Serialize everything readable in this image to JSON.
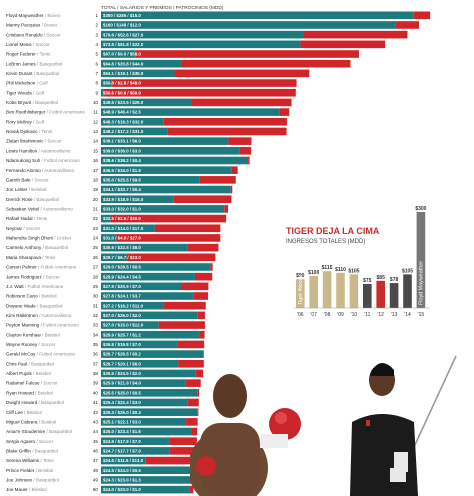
{
  "chart_data": [
    {
      "type": "bar",
      "orientation": "horizontal",
      "stacked": true,
      "title": "TOTAL / SALARIOS Y PREMIOS / PATROCINIOS (MDD)",
      "series": [
        {
          "name": "Salarios y premios",
          "color": "#1e7a7e"
        },
        {
          "name": "Patrocinios",
          "color": "#d2252a"
        }
      ],
      "rows": [
        {
          "rank": "1",
          "name": "Floyd Mayweather",
          "sport": "Boxeo",
          "label": "$300 / $285 / $15.0",
          "total": 300,
          "salary": 285,
          "sponsor": 15.0
        },
        {
          "rank": "2",
          "name": "Manny Pacquiao",
          "sport": "Boxeo",
          "label": "$160 / $148 / $12.0",
          "total": 160,
          "salary": 148,
          "sponsor": 12.0
        },
        {
          "rank": "3",
          "name": "Cristiano Ronaldo",
          "sport": "Soccer",
          "label": "$79.6 / $52.6 / $27.0",
          "total": 79.6,
          "salary": 52.6,
          "sponsor": 27.0
        },
        {
          "rank": "4",
          "name": "Lionel Messi",
          "sport": "Soccer",
          "label": "$73.8 / $51.8 / $22.0",
          "total": 73.8,
          "salary": 51.8,
          "sponsor": 22.0
        },
        {
          "rank": "5",
          "name": "Roger Federer",
          "sport": "Tenis",
          "label": "$67.0 / $9.0 / $58.0",
          "total": 67.0,
          "salary": 9.0,
          "sponsor": 58.0
        },
        {
          "rank": "6",
          "name": "LeBron James",
          "sport": "Basquetbol",
          "label": "$64.8 / $20.8 / $44.0",
          "total": 64.8,
          "salary": 20.8,
          "sponsor": 44.0
        },
        {
          "rank": "7",
          "name": "Kevin Durant",
          "sport": "Basquetbol",
          "label": "$54.1 / $19.1 / $35.0",
          "total": 54.1,
          "salary": 19.1,
          "sponsor": 35.0
        },
        {
          "rank": "8",
          "name": "Phil Mickelson",
          "sport": "Golf",
          "label": "$50.8 / $2.8 / $48.0",
          "total": 50.8,
          "salary": 2.8,
          "sponsor": 48.0
        },
        {
          "rank": "9",
          "name": "Tiger Woods",
          "sport": "Golf",
          "label": "$50.6 / $0.6 / $50.0",
          "total": 50.6,
          "salary": 0.6,
          "sponsor": 50.0
        },
        {
          "rank": "10",
          "name": "Kobe Bryant",
          "sport": "Basquetbol",
          "label": "$49.5 / $23.5 / $26.0",
          "total": 49.5,
          "salary": 23.5,
          "sponsor": 26.0
        },
        {
          "rank": "11",
          "name": "Ben Roethlisberger",
          "sport": "Futbol Americano",
          "label": "$48.9 / $46.4 / $2.5",
          "total": 48.9,
          "salary": 46.4,
          "sponsor": 2.5
        },
        {
          "rank": "12",
          "name": "Rory McIlroy",
          "sport": "Golf",
          "label": "$48.3 / $16.3 / $32.0",
          "total": 48.3,
          "salary": 16.3,
          "sponsor": 32.0
        },
        {
          "rank": "13",
          "name": "Novak Djokovic",
          "sport": "Tenis",
          "label": "$48.2 / $17.2 / $31.0",
          "total": 48.2,
          "salary": 17.2,
          "sponsor": 31.0
        },
        {
          "rank": "14",
          "name": "Zlatan Ibrahimovic",
          "sport": "Soccer",
          "label": "$39.1 / $33.1 / $6.0",
          "total": 39.1,
          "salary": 33.1,
          "sponsor": 6.0
        },
        {
          "rank": "15",
          "name": "Lewis Hamilton",
          "sport": "Automovilismo",
          "label": "$39.0 / $36.0 / $3.0",
          "total": 39.0,
          "salary": 36.0,
          "sponsor": 3.0
        },
        {
          "rank": "16",
          "name": "Ndamukong Suh",
          "sport": "Futbol Americano",
          "label": "$38.6 / $38.2 / $0.4",
          "total": 38.6,
          "salary": 38.2,
          "sponsor": 0.4
        },
        {
          "rank": "17",
          "name": "Fernando Alonso",
          "sport": "Automovilismo",
          "label": "$35.5 / $34.0 / $1.5",
          "total": 35.5,
          "salary": 34.0,
          "sponsor": 1.5
        },
        {
          "rank": "18",
          "name": "Gareth Bale",
          "sport": "Soccer",
          "label": "$35.0 / $25.5 / $9.5",
          "total": 35.0,
          "salary": 25.5,
          "sponsor": 9.5
        },
        {
          "rank": "19",
          "name": "Jon Lester",
          "sport": "Beisbol",
          "label": "$34.1 / $33.7 / $0.4",
          "total": 34.1,
          "salary": 33.7,
          "sponsor": 0.4
        },
        {
          "rank": "20",
          "name": "Derrick Rose",
          "sport": "Basquetbol",
          "label": "$33.9 / $18.9 / $15.0",
          "total": 33.9,
          "salary": 18.9,
          "sponsor": 15.0
        },
        {
          "rank": "21",
          "name": "Sebastian Vettel",
          "sport": "Automovilismo",
          "label": "$33.0 / $32.0 / $1.0",
          "total": 33.0,
          "salary": 32.0,
          "sponsor": 1.0
        },
        {
          "rank": "22",
          "name": "Rafael Nadal",
          "sport": "Tenis",
          "label": "$32.5 / $2.5 / $30.0",
          "total": 32.5,
          "salary": 2.5,
          "sponsor": 30.0
        },
        {
          "rank": "23",
          "name": "Neymar",
          "sport": "Soccer",
          "label": "$31.0 / $14.0 / $17.0",
          "total": 31.0,
          "salary": 14.0,
          "sponsor": 17.0
        },
        {
          "rank": "24",
          "name": "Mahendra Singh Dhoni",
          "sport": "Cricket",
          "label": "$31.0 / $4.0 / $27.0",
          "total": 31.0,
          "salary": 4.0,
          "sponsor": 27.0
        },
        {
          "rank": "25",
          "name": "Carmelo Anthony",
          "sport": "Basquetbol",
          "label": "$30.5 / $22.5 / $8.0",
          "total": 30.5,
          "salary": 22.5,
          "sponsor": 8.0
        },
        {
          "rank": "26",
          "name": "Maria Sharapova",
          "sport": "Tenis",
          "label": "$29.7 / $6.7 / $23.0",
          "total": 29.7,
          "salary": 6.7,
          "sponsor": 23.0
        },
        {
          "rank": "27",
          "name": "Carson Palmer",
          "sport": "Futbol Americano",
          "label": "$29.0 / $28.5 / $0.5",
          "total": 29.0,
          "salary": 28.5,
          "sponsor": 0.5
        },
        {
          "rank": "28",
          "name": "James Rodriguez",
          "sport": "Soccer",
          "label": "$28.9 / $24.4 / $4.5",
          "total": 28.9,
          "salary": 24.4,
          "sponsor": 4.5
        },
        {
          "rank": "29",
          "name": "J.J. Watt",
          "sport": "Futbol Americano",
          "label": "$27.9 / $20.9 / $7.0",
          "total": 27.9,
          "salary": 20.9,
          "sponsor": 7.0
        },
        {
          "rank": "30",
          "name": "Robinson Cano",
          "sport": "Beisbol",
          "label": "$27.8 / $24.1 / $3.7",
          "total": 27.8,
          "salary": 24.1,
          "sponsor": 3.7
        },
        {
          "rank": "31",
          "name": "Dwyane Wade",
          "sport": "Basquetbol",
          "label": "$27.2 / $16.2 / $11.0",
          "total": 27.2,
          "salary": 16.2,
          "sponsor": 11.0
        },
        {
          "rank": "32",
          "name": "Kimi Räikkönen",
          "sport": "Automovilismo",
          "label": "$27.0 / $25.0 / $2.0",
          "total": 27.0,
          "salary": 25.0,
          "sponsor": 2.0
        },
        {
          "rank": "33",
          "name": "Peyton Manning",
          "sport": "Futbol Americano",
          "label": "$27.0 / $15.0 / $12.0",
          "total": 27.0,
          "salary": 15.0,
          "sponsor": 12.0
        },
        {
          "rank": "34",
          "name": "Clayton Kershaw",
          "sport": "Beisbol",
          "label": "$26.9 / $25.7 / $1.2",
          "total": 26.9,
          "salary": 25.7,
          "sponsor": 1.2
        },
        {
          "rank": "35",
          "name": "Wayne Rooney",
          "sport": "Soccer",
          "label": "$26.8 / $19.8 / $7.0",
          "total": 26.8,
          "salary": 19.8,
          "sponsor": 7.0
        },
        {
          "rank": "36",
          "name": "Gerald McCoy",
          "sport": "Futbol Americano",
          "label": "$26.7 / $26.5 / $0.2",
          "total": 26.7,
          "salary": 26.5,
          "sponsor": 0.2
        },
        {
          "rank": "37",
          "name": "Chris Paul",
          "sport": "Basquetbol",
          "label": "$26.7 / $20.1 / $6.0",
          "total": 26.7,
          "salary": 20.1,
          "sponsor": 6.0
        },
        {
          "rank": "38",
          "name": "Albert Pujols",
          "sport": "Beisbol",
          "label": "$26.5 / $24.5 / $2.0",
          "total": 26.5,
          "salary": 24.5,
          "sponsor": 2.0
        },
        {
          "rank": "39",
          "name": "Radamel Falcao",
          "sport": "Soccer",
          "label": "$25.9 / $21.9 / $4.0",
          "total": 25.9,
          "salary": 21.9,
          "sponsor": 4.0
        },
        {
          "rank": "40",
          "name": "Ryan Howard",
          "sport": "Beisbol",
          "label": "$25.5 / $25.0 / $0.5",
          "total": 25.5,
          "salary": 25.0,
          "sponsor": 0.5
        },
        {
          "rank": "41",
          "name": "Dwight Howard",
          "sport": "Basquetbol",
          "label": "$25.4 / $22.4 / $3.0",
          "total": 25.4,
          "salary": 22.4,
          "sponsor": 3.0
        },
        {
          "rank": "42",
          "name": "Cliff Lee",
          "sport": "Beisbol",
          "label": "$25.3 / $25.0 / $0.3",
          "total": 25.3,
          "salary": 25.0,
          "sponsor": 0.3
        },
        {
          "rank": "43",
          "name": "Miguel Cabrera",
          "sport": "Beisbol",
          "label": "$25.1 / $22.1 / $3.0",
          "total": 25.1,
          "salary": 22.1,
          "sponsor": 3.0
        },
        {
          "rank": "44",
          "name": "Amar'e Stoudemire",
          "sport": "Basquetbol",
          "label": "$25.0 / $23.4 / $1.6",
          "total": 25.0,
          "salary": 23.4,
          "sponsor": 1.6
        },
        {
          "rank": "45",
          "name": "Sergio Agüero",
          "sport": "Soccer",
          "label": "$24.9 / $17.9 / $7.0",
          "total": 24.9,
          "salary": 17.9,
          "sponsor": 7.0
        },
        {
          "rank": "46",
          "name": "Blake Griffin",
          "sport": "Basquetbol",
          "label": "$24.7 / $17.7 / $7.0",
          "total": 24.7,
          "salary": 17.7,
          "sponsor": 7.0
        },
        {
          "rank": "47",
          "name": "Serena Williams",
          "sport": "Tenis",
          "label": "$24.6 / $11.6 / $13.0",
          "total": 24.6,
          "salary": 11.6,
          "sponsor": 13.0
        },
        {
          "rank": "48",
          "name": "Prince Fielder",
          "sport": "Beisbol",
          "label": "$24.5 / $24.0 / $0.5",
          "total": 24.5,
          "salary": 24.0,
          "sponsor": 0.5
        },
        {
          "rank": "49",
          "name": "Joe Johnson",
          "sport": "Basquetbol",
          "label": "$24.3 / $23.0 / $1.3",
          "total": 24.3,
          "salary": 23.0,
          "sponsor": 1.3
        },
        {
          "rank": "50",
          "name": "Joe Mauer",
          "sport": "Beisbol",
          "label": "$24.0 / $23.0 / $1.0",
          "total": 24.0,
          "salary": 23.0,
          "sponsor": 1.0
        }
      ]
    },
    {
      "type": "bar",
      "title": "TIGER DEJA LA CIMA",
      "subtitle": "INGRESOS TOTALES (MDD)",
      "categories": [
        "'06",
        "'07",
        "'08",
        "'09",
        "'10",
        "'11",
        "'12",
        "'13",
        "'14",
        "'15"
      ],
      "values": [
        90,
        100,
        115,
        110,
        105,
        75,
        85,
        78,
        105,
        300
      ],
      "value_labels": [
        "$90",
        "$100",
        "$115",
        "$110",
        "$105",
        "$75",
        "$85",
        "$78",
        "$105",
        "$300"
      ],
      "bar_names": [
        "Tiger Woods",
        "",
        "",
        "",
        "",
        "",
        "",
        "",
        "",
        "Floyd Mayweather"
      ],
      "colors": {
        "tiger": "#c9b98a",
        "dark": "#4a4a4a",
        "red": "#c92d2b",
        "grey": "#777777"
      }
    }
  ],
  "inset": {
    "title": "TIGER DEJA LA CIMA",
    "subtitle": "INGRESOS TOTALES (MDD)"
  },
  "photos": [
    {
      "name": "floyd-mayweather-photo"
    },
    {
      "name": "tiger-woods-photo"
    }
  ]
}
